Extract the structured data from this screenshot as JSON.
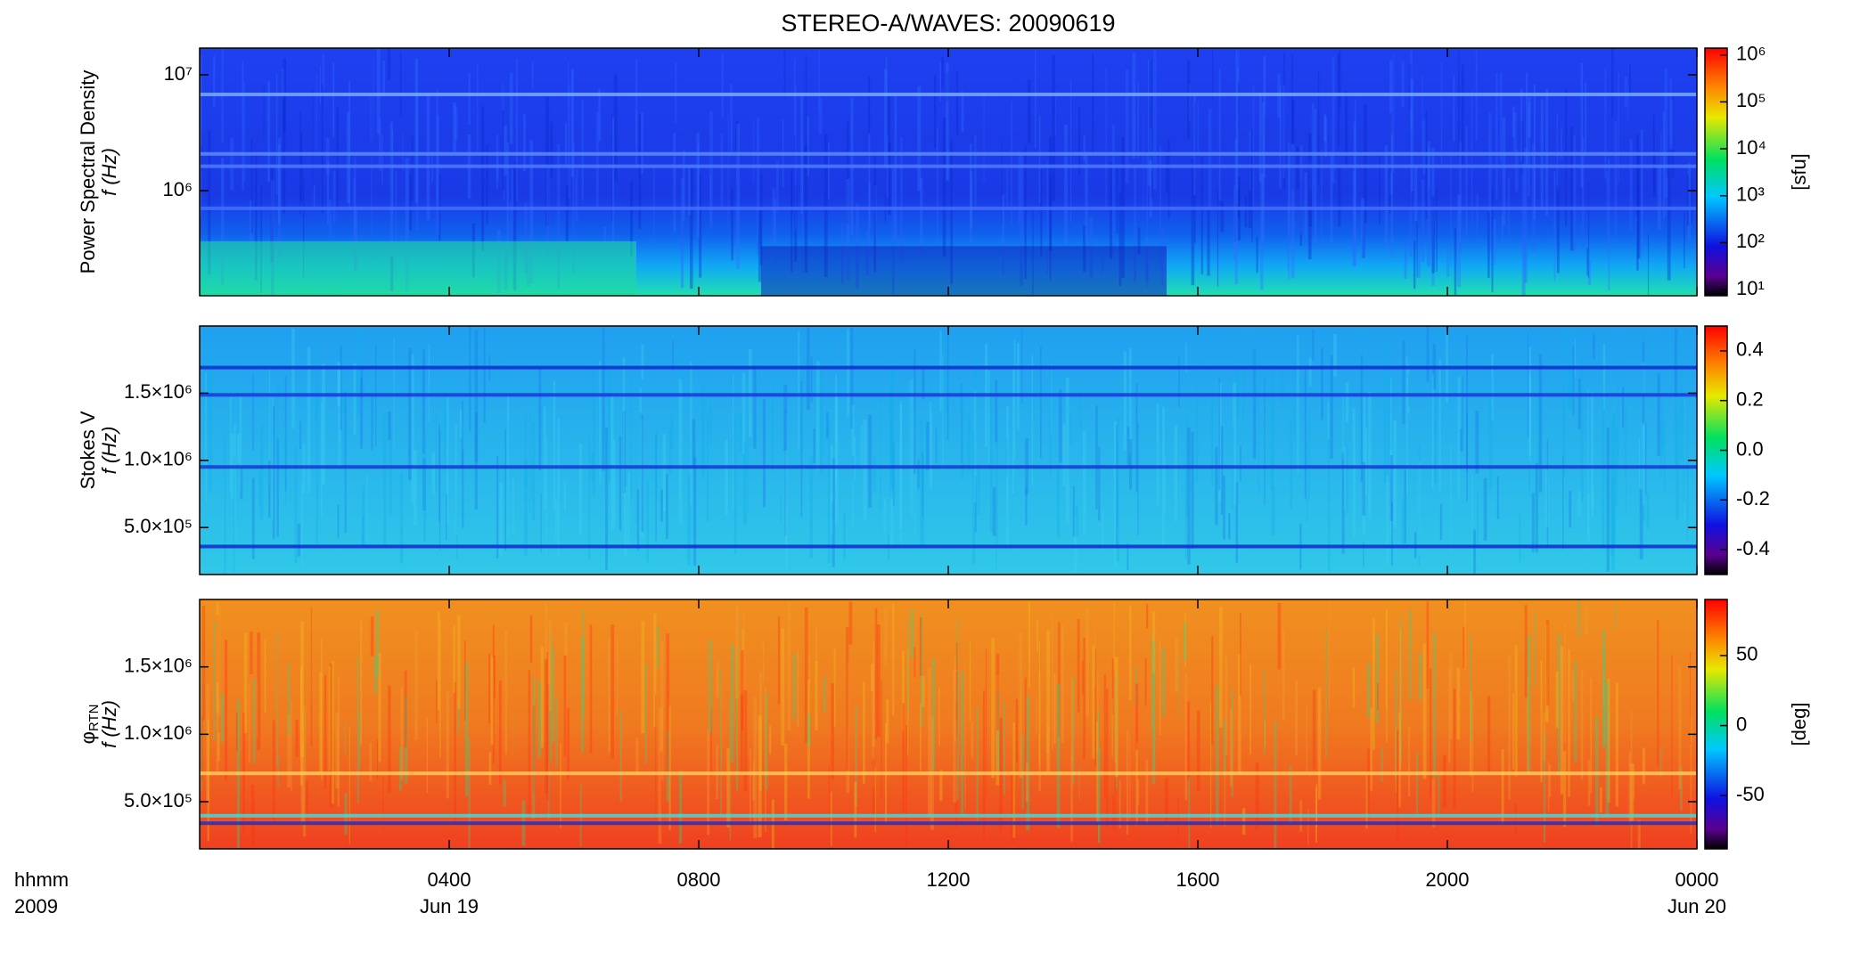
{
  "title": "STEREO-A/WAVES: 20090619",
  "x_axis": {
    "xlim": [
      0,
      24
    ],
    "xticks": [
      {
        "value": 4,
        "label": "0400"
      },
      {
        "value": 8,
        "label": "0800"
      },
      {
        "value": 12,
        "label": "1200"
      },
      {
        "value": 16,
        "label": "1600"
      },
      {
        "value": 20,
        "label": "2000"
      },
      {
        "value": 24,
        "label": "0000"
      }
    ],
    "date_labels": [
      {
        "value": 4,
        "label": "Jun 19"
      },
      {
        "value": 24,
        "label": "Jun 20"
      }
    ],
    "caption": [
      "hhmm",
      "2009"
    ]
  },
  "chart_data": [
    {
      "type": "spectrogram",
      "ylabel": "Power Spectral Density",
      "ylabel_f": "f (Hz)",
      "yscale": "log",
      "ylim": [
        124000,
        17000000
      ],
      "yticks": [
        {
          "value": 1000000,
          "label": "10⁶"
        },
        {
          "value": 10000000,
          "label": "10⁷"
        }
      ],
      "zscale": "log",
      "zlim": [
        7.4,
        1400000
      ],
      "zticks": [
        {
          "value": 10,
          "label": "10¹"
        },
        {
          "value": 100,
          "label": "10²"
        },
        {
          "value": 1000,
          "label": "10³"
        },
        {
          "value": 10000,
          "label": "10⁴"
        },
        {
          "value": 100000,
          "label": "10⁵"
        },
        {
          "value": 1000000,
          "label": "10⁶"
        }
      ],
      "zlabel": "[sfu]",
      "style": "psd"
    },
    {
      "type": "spectrogram",
      "ylabel": "Stokes V",
      "ylabel_f": "f (Hz)",
      "ylim": [
        150000,
        2000000
      ],
      "yticks": [
        {
          "value": 500000,
          "label": "5.0×10⁵"
        },
        {
          "value": 1000000,
          "label": "1.0×10⁶"
        },
        {
          "value": 1500000,
          "label": "1.5×10⁶"
        }
      ],
      "zlim": [
        -0.5,
        0.5
      ],
      "zticks": [
        -0.4,
        -0.2,
        {
          "value": 0,
          "label": "0.0"
        },
        0.2,
        0.4
      ],
      "style": "stokes"
    },
    {
      "type": "spectrogram",
      "ylabel": "φ",
      "ylabel_sub": "RTN",
      "ylabel_f": "f (Hz)",
      "ylim": [
        150000,
        2000000
      ],
      "yticks": [
        {
          "value": 500000,
          "label": "5.0×10⁵"
        },
        {
          "value": 1000000,
          "label": "1.0×10⁶"
        },
        {
          "value": 1500000,
          "label": "1.5×10⁶"
        }
      ],
      "zlim": [
        -88,
        90
      ],
      "zticks": [
        -50,
        0,
        50
      ],
      "zlabel": "[deg]",
      "style": "phase"
    }
  ]
}
